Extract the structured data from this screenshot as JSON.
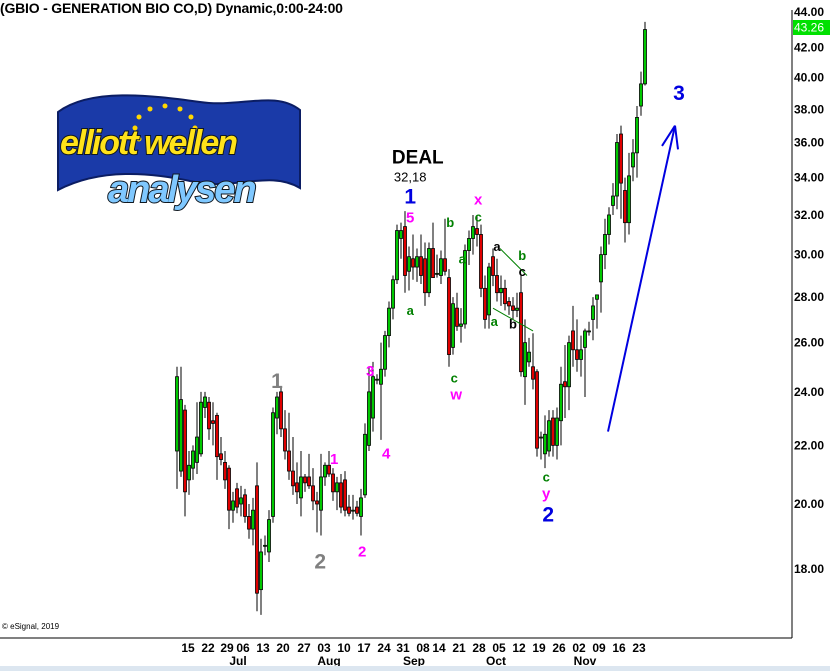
{
  "title": "(GBIO - GENERATION BIO CO,D) Dynamic,0:00-24:00",
  "copyright": "© eSignal, 2019",
  "logo": {
    "line1": "elliott wellen",
    "line2": "analysen"
  },
  "colors": {
    "up": "#00c800",
    "down": "#e00000",
    "price_tag": "#00e000",
    "wave_blue": "#0000e0",
    "wave_gray": "#808080",
    "wave_magenta": "#ff00ff",
    "wave_green": "#008000",
    "trendline": "#008000"
  },
  "chart_data": {
    "type": "candlestick",
    "y_scale": "log",
    "ylim": [
      16.5,
      44.5
    ],
    "yticks": [
      "18.00",
      "20.00",
      "22.00",
      "24.00",
      "26.00",
      "28.00",
      "30.00",
      "32.00",
      "34.00",
      "36.00",
      "38.00",
      "40.00",
      "42.00",
      "44.00"
    ],
    "last_price": "43.26",
    "xtick_labels": [
      "15",
      "22",
      "29",
      "06",
      "13",
      "20",
      "27",
      "03",
      "10",
      "17",
      "24",
      "31",
      "08",
      "14",
      "21",
      "28",
      "05",
      "12",
      "19",
      "26",
      "02",
      "09",
      "16",
      "23"
    ],
    "month_labels": [
      "Jul",
      "Aug",
      "Sep",
      "Oct",
      "Nov"
    ],
    "ohlc": [
      [
        21.8,
        25.0,
        20.5,
        24.6
      ],
      [
        21.1,
        25.0,
        20.9,
        23.7
      ],
      [
        23.3,
        23.5,
        19.6,
        20.4
      ],
      [
        20.8,
        21.8,
        20.3,
        21.3
      ],
      [
        21.2,
        22.0,
        20.8,
        21.8
      ],
      [
        21.4,
        23.6,
        21.0,
        22.3
      ],
      [
        21.7,
        24.0,
        21.6,
        23.6
      ],
      [
        23.4,
        24.0,
        23.0,
        23.8
      ],
      [
        23.6,
        23.8,
        22.2,
        22.6
      ],
      [
        22.9,
        23.6,
        22.0,
        22.8
      ],
      [
        23.1,
        23.2,
        20.8,
        21.6
      ],
      [
        21.7,
        22.3,
        21.3,
        21.5
      ],
      [
        21.4,
        21.8,
        20.5,
        20.8
      ],
      [
        21.2,
        21.3,
        19.2,
        19.8
      ],
      [
        19.8,
        20.4,
        19.4,
        20.1
      ],
      [
        20.5,
        20.7,
        19.7,
        19.9
      ],
      [
        20.0,
        20.6,
        19.6,
        20.2
      ],
      [
        20.3,
        20.5,
        19.4,
        19.6
      ],
      [
        19.6,
        20.0,
        18.9,
        19.2
      ],
      [
        19.2,
        20.2,
        18.7,
        19.8
      ],
      [
        20.6,
        21.4,
        16.8,
        17.3
      ],
      [
        17.4,
        18.9,
        16.7,
        18.5
      ],
      [
        18.7,
        19.0,
        18.4,
        18.7
      ],
      [
        18.5,
        19.8,
        18.2,
        19.5
      ],
      [
        19.6,
        23.4,
        19.4,
        23.2
      ],
      [
        23.0,
        24.0,
        22.4,
        23.8
      ],
      [
        24.0,
        24.2,
        22.3,
        22.6
      ],
      [
        22.6,
        23.3,
        21.5,
        21.8
      ],
      [
        21.8,
        23.2,
        20.8,
        21.1
      ],
      [
        21.1,
        22.3,
        20.3,
        20.6
      ],
      [
        20.7,
        21.4,
        20.0,
        20.4
      ],
      [
        20.2,
        21.8,
        19.6,
        20.9
      ],
      [
        20.9,
        21.0,
        20.4,
        20.7
      ],
      [
        20.9,
        21.7,
        20.5,
        20.6
      ],
      [
        20.6,
        21.2,
        19.8,
        20.1
      ],
      [
        20.1,
        20.4,
        19.1,
        20.0
      ],
      [
        19.8,
        21.7,
        19.0,
        20.9
      ],
      [
        20.9,
        21.4,
        20.6,
        21.3
      ],
      [
        21.3,
        21.8,
        20.9,
        21.0
      ],
      [
        21.0,
        21.2,
        20.1,
        20.4
      ],
      [
        20.4,
        20.9,
        19.8,
        20.7
      ],
      [
        20.7,
        21.0,
        19.7,
        19.9
      ],
      [
        20.8,
        21.1,
        19.6,
        19.8
      ],
      [
        19.9,
        20.3,
        19.6,
        19.7
      ],
      [
        19.8,
        20.3,
        19.5,
        19.8
      ],
      [
        19.9,
        20.1,
        19.6,
        19.7
      ],
      [
        19.6,
        20.5,
        19.0,
        20.2
      ],
      [
        20.3,
        22.8,
        20.2,
        22.4
      ],
      [
        22.0,
        25.0,
        21.8,
        24.0
      ],
      [
        23.0,
        25.2,
        22.5,
        24.6
      ],
      [
        24.5,
        24.7,
        24.3,
        24.5
      ],
      [
        24.3,
        26.0,
        22.2,
        24.9
      ],
      [
        24.9,
        26.5,
        24.6,
        26.3
      ],
      [
        26.3,
        27.8,
        25.8,
        27.5
      ],
      [
        27.5,
        29.0,
        27.0,
        28.8
      ],
      [
        28.8,
        31.5,
        28.6,
        31.2
      ],
      [
        30.8,
        31.6,
        29.8,
        31.2
      ],
      [
        31.4,
        32.2,
        28.2,
        29.0
      ],
      [
        29.2,
        30.4,
        28.3,
        29.9
      ],
      [
        29.8,
        31.0,
        28.8,
        29.4
      ],
      [
        29.4,
        30.3,
        28.7,
        29.9
      ],
      [
        29.9,
        31.0,
        28.6,
        29.0
      ],
      [
        29.8,
        30.6,
        27.6,
        28.2
      ],
      [
        28.2,
        30.6,
        28.0,
        30.3
      ],
      [
        30.3,
        31.6,
        28.9,
        28.9
      ],
      [
        29.1,
        30.0,
        28.9,
        29.1
      ],
      [
        29.0,
        30.2,
        28.6,
        29.8
      ],
      [
        29.8,
        31.8,
        29.0,
        29.2
      ],
      [
        28.9,
        29.3,
        25.0,
        25.5
      ],
      [
        25.8,
        28.0,
        25.5,
        27.7
      ],
      [
        27.5,
        28.2,
        26.5,
        26.7
      ],
      [
        26.7,
        27.5,
        26.0,
        26.8
      ],
      [
        26.8,
        30.5,
        26.6,
        30.2
      ],
      [
        30.2,
        31.2,
        29.5,
        30.8
      ],
      [
        30.8,
        32.0,
        30.0,
        31.4
      ],
      [
        31.3,
        32.0,
        30.4,
        31.0
      ],
      [
        31.0,
        31.5,
        28.0,
        28.4
      ],
      [
        28.4,
        29.0,
        26.6,
        27.0
      ],
      [
        27.2,
        29.6,
        26.6,
        29.4
      ],
      [
        29.9,
        30.3,
        28.5,
        29.0
      ],
      [
        29.0,
        29.8,
        27.8,
        28.2
      ],
      [
        28.2,
        29.0,
        27.6,
        28.4
      ],
      [
        28.4,
        28.8,
        27.4,
        27.7
      ],
      [
        27.8,
        28.0,
        27.2,
        27.6
      ],
      [
        27.6,
        28.0,
        27.0,
        27.4
      ],
      [
        27.4,
        28.2,
        27.1,
        27.5
      ],
      [
        28.2,
        29.0,
        24.6,
        24.8
      ],
      [
        24.6,
        27.0,
        23.5,
        26.0
      ],
      [
        25.2,
        26.2,
        25.0,
        25.6
      ],
      [
        25.0,
        26.4,
        24.1,
        24.5
      ],
      [
        24.8,
        24.9,
        21.6,
        21.9
      ],
      [
        22.3,
        22.5,
        21.5,
        22.3
      ],
      [
        21.7,
        23.1,
        21.2,
        22.4
      ],
      [
        21.8,
        23.3,
        21.6,
        22.9
      ],
      [
        23.0,
        23.3,
        21.6,
        22.0
      ],
      [
        22.0,
        23.4,
        21.5,
        23.0
      ],
      [
        22.9,
        25.0,
        22.0,
        24.3
      ],
      [
        24.4,
        25.9,
        23.0,
        24.2
      ],
      [
        24.2,
        26.3,
        23.3,
        26.0
      ],
      [
        26.5,
        27.6,
        25.0,
        25.7
      ],
      [
        25.7,
        27.0,
        24.8,
        25.3
      ],
      [
        25.3,
        26.3,
        24.6,
        25.7
      ],
      [
        25.8,
        26.6,
        23.8,
        26.5
      ],
      [
        26.5,
        26.9,
        26.3,
        26.5
      ],
      [
        27.0,
        28.0,
        26.1,
        27.6
      ],
      [
        27.9,
        28.1,
        26.6,
        28.1
      ],
      [
        28.7,
        30.4,
        27.3,
        30.0
      ],
      [
        30.0,
        31.8,
        29.3,
        31.0
      ],
      [
        31.0,
        32.4,
        30.5,
        32.0
      ],
      [
        32.5,
        33.7,
        32.0,
        33.0
      ],
      [
        33.0,
        36.5,
        32.3,
        36.0
      ],
      [
        36.5,
        37.0,
        31.8,
        33.7
      ],
      [
        33.3,
        34.0,
        30.6,
        31.6
      ],
      [
        31.6,
        35.4,
        31.0,
        34.1
      ],
      [
        34.6,
        36.2,
        33.8,
        35.4
      ],
      [
        35.4,
        38.2,
        34.0,
        37.5
      ],
      [
        38.2,
        40.4,
        37.6,
        39.6
      ],
      [
        39.6,
        43.8,
        39.5,
        43.26
      ]
    ],
    "annotations": [
      {
        "text": "DEAL",
        "color": "#000000",
        "size": "xl",
        "bar": 60.2,
        "price": 35.1
      },
      {
        "text": "32,18",
        "color": "#000000",
        "size": "s",
        "bar": 58.3,
        "price": 34.3
      },
      {
        "text": "1",
        "color": "#0000e0",
        "size": "l",
        "bar": 58.3,
        "price": 33.3
      },
      {
        "text": "5",
        "color": "#ff00ff",
        "size": "m",
        "bar": 58.3,
        "price": 32.4
      },
      {
        "text": "1",
        "color": "#808080",
        "size": "l",
        "bar": 25,
        "price": 24.4
      },
      {
        "text": "2",
        "color": "#808080",
        "size": "l",
        "bar": 35.8,
        "price": 18.2
      },
      {
        "text": "1",
        "color": "#ff00ff",
        "size": "m",
        "bar": 39.3,
        "price": 21.5
      },
      {
        "text": "2",
        "color": "#ff00ff",
        "size": "m",
        "bar": 46.3,
        "price": 18.5
      },
      {
        "text": "3",
        "color": "#ff00ff",
        "size": "m",
        "bar": 48.3,
        "price": 24.8
      },
      {
        "text": "4",
        "color": "#ff00ff",
        "size": "m",
        "bar": 52.3,
        "price": 21.7
      },
      {
        "text": "a",
        "color": "#008000",
        "size": "s",
        "bar": 58.3,
        "price": 27.4
      },
      {
        "text": "b",
        "color": "#008000",
        "size": "s",
        "bar": 68.3,
        "price": 31.6
      },
      {
        "text": "a",
        "color": "#008000",
        "size": "s",
        "bar": 71.3,
        "price": 29.8
      },
      {
        "text": "c",
        "color": "#008000",
        "size": "s",
        "bar": 69.3,
        "price": 24.55
      },
      {
        "text": "w",
        "color": "#ff00ff",
        "size": "m",
        "bar": 69.8,
        "price": 24.1
      },
      {
        "text": "x",
        "color": "#ff00ff",
        "size": "m",
        "bar": 75.3,
        "price": 32.8
      },
      {
        "text": "c",
        "color": "#008000",
        "size": "s",
        "bar": 75.3,
        "price": 32.2
      },
      {
        "text": "a",
        "color": "#000000",
        "size": "s",
        "bar": 80,
        "price": 30.4
      },
      {
        "text": "b",
        "color": "#008000",
        "size": "s",
        "bar": 86.3,
        "price": 29.95
      },
      {
        "text": "c",
        "color": "#000000",
        "size": "s",
        "bar": 86.3,
        "price": 29.55
      },
      {
        "text": "a",
        "color": "#008000",
        "size": "s",
        "bar": 79.3,
        "price": 26.9
      },
      {
        "text": "b",
        "color": "#000000",
        "size": "s",
        "bar": 84,
        "price": 26.8
      },
      {
        "text": "c",
        "color": "#008000",
        "size": "s",
        "bar": 92.3,
        "price": 20.9
      },
      {
        "text": "y",
        "color": "#ff00ff",
        "size": "m",
        "bar": 92.3,
        "price": 20.5
      },
      {
        "text": "2",
        "color": "#0000e0",
        "size": "l",
        "bar": 92.8,
        "price": 20.0
      },
      {
        "text": "3",
        "color": "#0000e0",
        "size": "l",
        "bar": 125.5,
        "price": 39.0
      }
    ],
    "trendlines": [
      {
        "from": [
          80.75,
          30.3
        ],
        "to": [
          87.5,
          29.0
        ]
      },
      {
        "from": [
          79,
          27.5
        ],
        "to": [
          89,
          26.5
        ]
      }
    ],
    "arrow": {
      "from": [
        107.75,
        22.5
      ],
      "to": [
        124.5,
        37.0
      ],
      "head": [
        [
          121.25,
          35.8
        ],
        [
          125.25,
          35.6
        ]
      ]
    }
  }
}
